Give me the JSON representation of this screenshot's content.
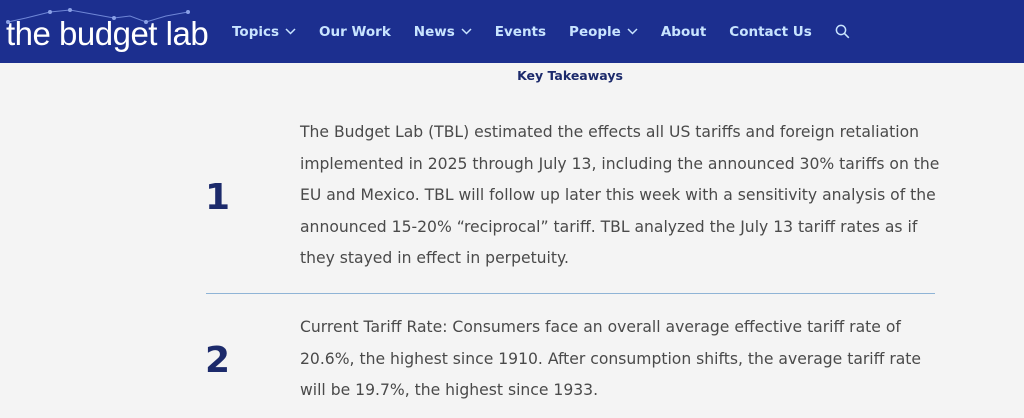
{
  "header": {
    "logo_text": "the budget lab",
    "nav": [
      {
        "label": "Topics",
        "has_dropdown": true
      },
      {
        "label": "Our Work",
        "has_dropdown": false
      },
      {
        "label": "News",
        "has_dropdown": true
      },
      {
        "label": "Events",
        "has_dropdown": false
      },
      {
        "label": "People",
        "has_dropdown": true
      },
      {
        "label": "About",
        "has_dropdown": false
      },
      {
        "label": "Contact Us",
        "has_dropdown": false
      }
    ],
    "search_icon": "search-icon",
    "colors": {
      "background": "#1c2f8f",
      "nav_text": "#c8e4ff"
    }
  },
  "main": {
    "section_title": "Key Takeaways",
    "takeaways": [
      {
        "number": "1",
        "text": "The Budget Lab (TBL) estimated the effects all US tariffs and foreign retaliation implemented in 2025 through July 13, including the announced 30% tariffs on the EU and Mexico. TBL will follow up later this week with a sensitivity analysis of the announced 15-20% “reciprocal” tariff. TBL analyzed the July 13 tariff rates as if they stayed in effect in perpetuity."
      },
      {
        "number": "2",
        "text": "Current Tariff Rate: Consumers face an overall average effective tariff rate of 20.6%, the highest since 1910. After consumption shifts, the average tariff rate will be 19.7%, the highest since 1933."
      }
    ],
    "colors": {
      "number": "#1c2a6b",
      "body_text": "#4a4a4a",
      "divider": "#8fb4d6"
    }
  }
}
